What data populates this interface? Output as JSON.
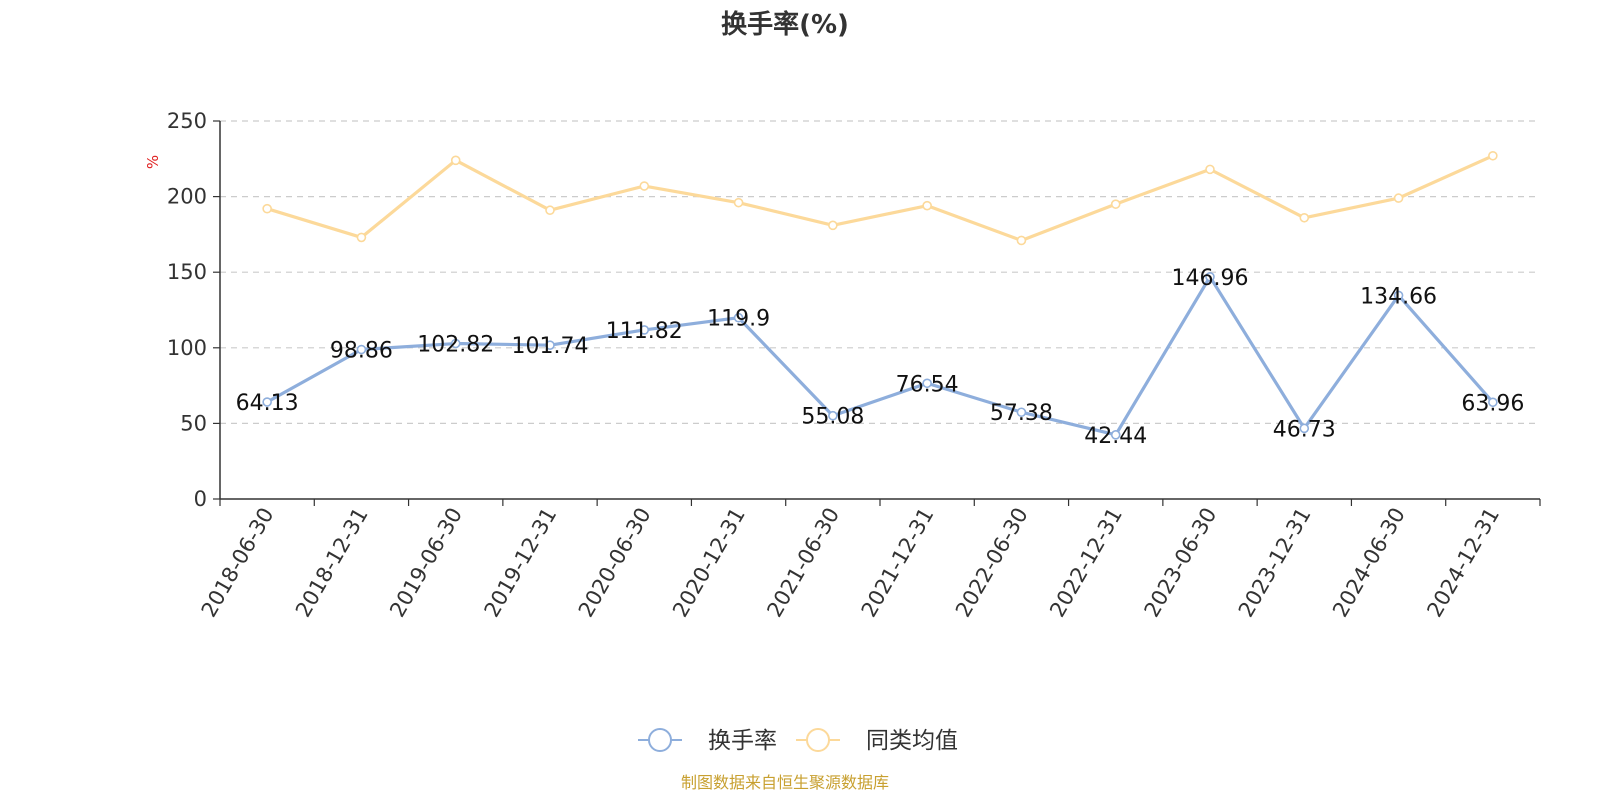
{
  "chart_data": {
    "type": "line",
    "title": "换手率(%)",
    "ylabel": "%",
    "xlabel": "",
    "ylim": [
      0,
      250
    ],
    "yticks": [
      0,
      50,
      100,
      150,
      200,
      250
    ],
    "grid": true,
    "legend_position": "bottom-center",
    "categories": [
      "2018-06-30",
      "2018-12-31",
      "2019-06-30",
      "2019-12-31",
      "2020-06-30",
      "2020-12-31",
      "2021-06-30",
      "2021-12-31",
      "2022-06-30",
      "2022-12-31",
      "2023-06-30",
      "2023-12-31",
      "2024-06-30",
      "2024-12-31"
    ],
    "series": [
      {
        "name": "换手率",
        "color": "#8eaedc",
        "show_labels": true,
        "values": [
          64.13,
          98.86,
          102.82,
          101.74,
          111.82,
          119.9,
          55.08,
          76.54,
          57.38,
          42.44,
          146.96,
          46.73,
          134.66,
          63.96
        ],
        "labels": [
          "64.13",
          "98.86",
          "102.82",
          "101.74",
          "111.82",
          "119.9",
          "55.08",
          "76.54",
          "57.38",
          "42.44",
          "146.96",
          "46.73",
          "134.66",
          "63.96"
        ]
      },
      {
        "name": "同类均值",
        "color": "#fcd99a",
        "show_labels": false,
        "values": [
          192,
          173,
          224,
          191,
          207,
          196,
          181,
          194,
          171,
          195,
          218,
          186,
          199,
          227
        ]
      }
    ],
    "source_note": "制图数据来自恒生聚源数据库"
  }
}
